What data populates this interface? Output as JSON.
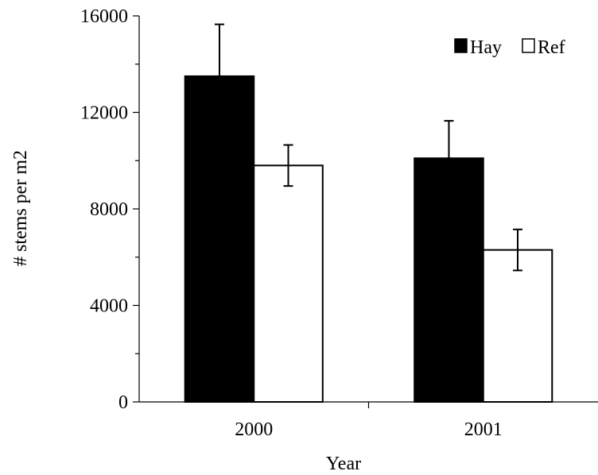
{
  "chart_data": {
    "type": "bar",
    "title": "",
    "xlabel": "Year",
    "ylabel": "# stems per m2",
    "categories": [
      "2000",
      "2001"
    ],
    "series": [
      {
        "name": "Hay",
        "values": [
          13500,
          10100
        ],
        "error": [
          2150,
          1550
        ],
        "color": "#000000"
      },
      {
        "name": "Ref",
        "values": [
          9800,
          6300
        ],
        "error": [
          850,
          850
        ],
        "color": "#ffffff"
      }
    ],
    "ylim": [
      0,
      16000
    ],
    "yticks": [
      "0",
      "4000",
      "8000",
      "12000",
      "16000"
    ],
    "minor_ticks": true,
    "grid": false,
    "legend": "top-right",
    "error_bars": "upper and lower on each bar"
  }
}
